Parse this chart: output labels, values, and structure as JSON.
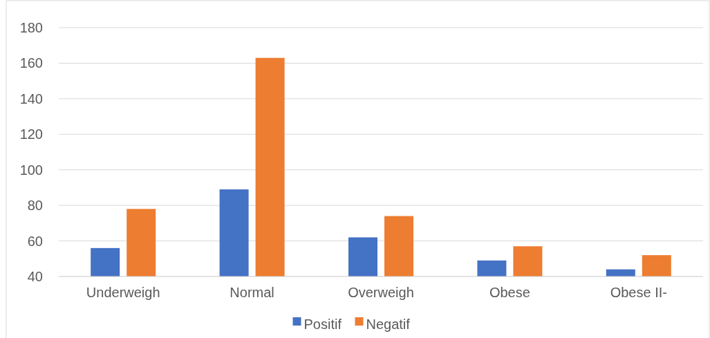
{
  "chart_data": {
    "type": "bar",
    "categories": [
      "Underweigh",
      "Normal",
      "Overweigh",
      "Obese",
      "Obese II-"
    ],
    "series": [
      {
        "name": "Positif",
        "color": "#4472c4",
        "values": [
          56,
          89,
          62,
          49,
          44
        ]
      },
      {
        "name": "Negatif",
        "color": "#ed7d31",
        "values": [
          78,
          163,
          74,
          57,
          52
        ]
      }
    ],
    "ylim": [
      40,
      180
    ],
    "yticks": [
      40,
      60,
      80,
      100,
      120,
      140,
      160,
      180
    ],
    "grid": "y",
    "legend": "bottom"
  }
}
